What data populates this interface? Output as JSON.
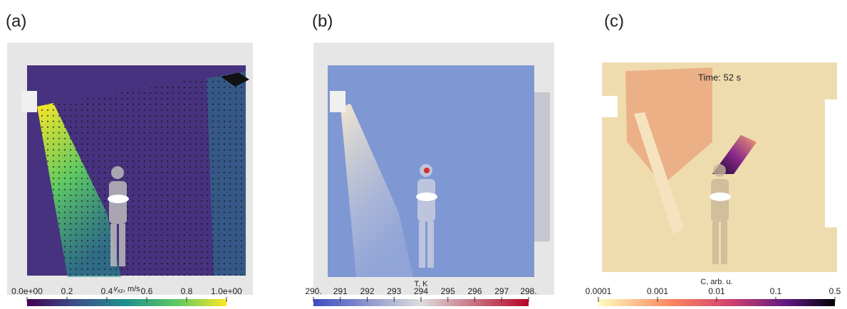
{
  "panels": [
    {
      "label": "(a)",
      "colorbar": {
        "title_var": "v",
        "title_sub": "xz",
        "title_unit": ", m/s",
        "ticks": [
          "0.0e+00",
          "0.2",
          "0.4",
          "0.6",
          "0.8",
          "1.0e+00"
        ]
      }
    },
    {
      "label": "(b)",
      "colorbar": {
        "title": "T, K",
        "ticks": [
          "290.",
          "291",
          "292",
          "293",
          "294",
          "295",
          "296",
          "297",
          "298."
        ]
      }
    },
    {
      "label": "(c)",
      "annotation": "Time: 52 s",
      "colorbar": {
        "title": "C, arb. u.",
        "ticks": [
          "0.0001",
          "0.001",
          "0.01",
          "0.1",
          "0.5"
        ]
      }
    }
  ]
}
